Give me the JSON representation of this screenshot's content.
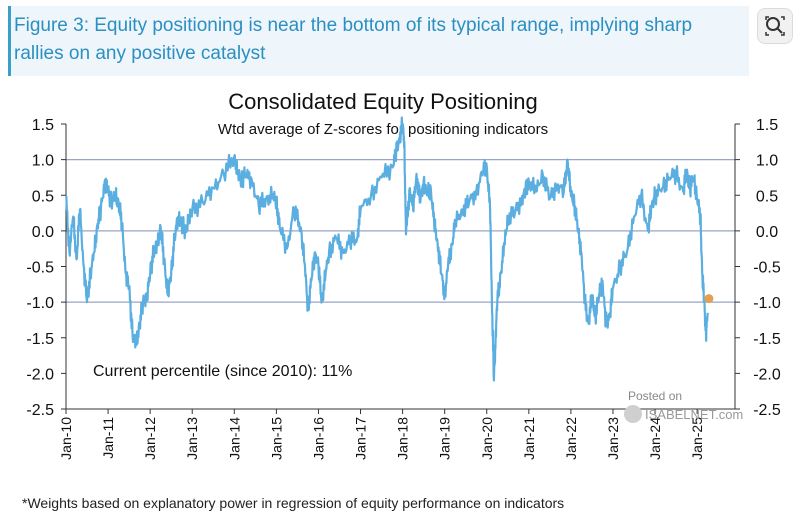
{
  "figure": {
    "caption": "Figure 3: Equity positioning is near the bottom of its typical range, implying sharp rallies on any positive catalyst",
    "footnote": "*Weights based on explanatory power in regression of equity performance on indicators"
  },
  "watermark": {
    "line1": "Posted on",
    "line2": "ISABELNET.com"
  },
  "icons": {
    "zoom": "zoom-lens-icon"
  },
  "chart_data": {
    "type": "line",
    "title": "Consolidated Equity Positioning",
    "subtitle": "Wtd average of Z-scores for positioning indicators",
    "annotation": "Current percentile (since 2010): 11%",
    "ylim": [
      -2.5,
      1.5
    ],
    "yticks": [
      "1.5",
      "1.0",
      "0.5",
      "0.0",
      "-0.5",
      "-1.0",
      "-1.5",
      "-2.0",
      "-2.5"
    ],
    "reference_lines": [
      1.0,
      -1.0,
      0.0
    ],
    "x_start": 2010.0,
    "x_end": 2025.4,
    "xticks": [
      "Jan-10",
      "Jan-11",
      "Jan-12",
      "Jan-13",
      "Jan-14",
      "Jan-15",
      "Jan-16",
      "Jan-17",
      "Jan-18",
      "Jan-19",
      "Jan-20",
      "Jan-21",
      "Jan-22",
      "Jan-23",
      "Jan-24",
      "Jan-25"
    ],
    "series": [
      {
        "name": "Consolidated Equity Positioning",
        "color": "#5aaee0",
        "x": [
          2010.0,
          2010.08,
          2010.17,
          2010.25,
          2010.33,
          2010.42,
          2010.5,
          2010.58,
          2010.67,
          2010.75,
          2010.83,
          2010.92,
          2011.0,
          2011.08,
          2011.17,
          2011.25,
          2011.33,
          2011.42,
          2011.5,
          2011.58,
          2011.67,
          2011.75,
          2011.83,
          2011.92,
          2012.0,
          2012.08,
          2012.17,
          2012.25,
          2012.33,
          2012.42,
          2012.5,
          2012.58,
          2012.67,
          2012.75,
          2012.83,
          2012.92,
          2013.0,
          2013.25,
          2013.5,
          2013.75,
          2014.0,
          2014.08,
          2014.17,
          2014.25,
          2014.42,
          2014.58,
          2014.75,
          2014.92,
          2015.0,
          2015.08,
          2015.25,
          2015.42,
          2015.58,
          2015.67,
          2015.75,
          2015.83,
          2015.92,
          2016.0,
          2016.08,
          2016.17,
          2016.25,
          2016.42,
          2016.58,
          2016.75,
          2016.92,
          2017.0,
          2017.25,
          2017.5,
          2017.75,
          2017.83,
          2017.92,
          2018.0,
          2018.04,
          2018.08,
          2018.17,
          2018.25,
          2018.33,
          2018.42,
          2018.5,
          2018.58,
          2018.67,
          2018.75,
          2018.83,
          2018.92,
          2019.0,
          2019.08,
          2019.17,
          2019.25,
          2019.42,
          2019.58,
          2019.75,
          2019.92,
          2020.0,
          2020.08,
          2020.12,
          2020.17,
          2020.21,
          2020.25,
          2020.33,
          2020.42,
          2020.5,
          2020.67,
          2020.83,
          2020.92,
          2021.0,
          2021.17,
          2021.33,
          2021.5,
          2021.67,
          2021.83,
          2021.92,
          2022.0,
          2022.08,
          2022.17,
          2022.25,
          2022.33,
          2022.42,
          2022.5,
          2022.58,
          2022.67,
          2022.75,
          2022.83,
          2022.92,
          2023.0,
          2023.17,
          2023.33,
          2023.5,
          2023.67,
          2023.83,
          2023.92,
          2024.0,
          2024.17,
          2024.33,
          2024.5,
          2024.67,
          2024.75,
          2024.83,
          2024.92,
          2025.0,
          2025.08,
          2025.12,
          2025.17,
          2025.21,
          2025.25
        ],
        "values": [
          0.5,
          -0.3,
          0.2,
          -0.4,
          0.3,
          -0.5,
          -1.0,
          -0.6,
          -0.3,
          0.1,
          0.3,
          0.7,
          0.55,
          0.4,
          0.5,
          0.4,
          0.1,
          -0.6,
          -0.8,
          -1.45,
          -1.6,
          -1.3,
          -1.0,
          -0.95,
          -0.6,
          -0.3,
          -0.2,
          0.05,
          -0.4,
          -0.9,
          -0.6,
          -0.1,
          0.2,
          0.1,
          0.0,
          0.15,
          0.3,
          0.4,
          0.6,
          0.8,
          1.05,
          0.8,
          0.7,
          0.8,
          0.7,
          0.35,
          0.45,
          0.5,
          0.4,
          0.05,
          -0.25,
          0.3,
          0.05,
          -0.45,
          -1.1,
          -0.7,
          -0.3,
          -0.5,
          -1.0,
          -0.6,
          -0.3,
          -0.1,
          -0.3,
          -0.15,
          -0.1,
          0.3,
          0.5,
          0.75,
          0.9,
          1.05,
          1.3,
          1.5,
          1.25,
          -0.05,
          0.6,
          0.3,
          0.8,
          0.4,
          0.7,
          0.5,
          0.6,
          0.1,
          -0.15,
          -0.6,
          -0.9,
          -0.5,
          -0.2,
          0.1,
          0.3,
          0.4,
          0.55,
          0.85,
          0.9,
          0.3,
          -0.9,
          -2.1,
          -1.5,
          -1.0,
          -0.6,
          -0.2,
          0.2,
          0.25,
          0.45,
          0.55,
          0.7,
          0.55,
          0.8,
          0.45,
          0.65,
          0.55,
          1.0,
          0.5,
          0.4,
          0.0,
          -0.3,
          -1.0,
          -1.3,
          -0.9,
          -1.2,
          -0.9,
          -0.7,
          -1.3,
          -1.2,
          -0.8,
          -0.5,
          -0.3,
          0.2,
          0.5,
          0.0,
          0.35,
          0.5,
          0.6,
          0.75,
          0.8,
          0.55,
          0.85,
          0.6,
          0.75,
          0.45,
          0.2,
          -0.6,
          -1.0,
          -1.45,
          -1.15
        ]
      }
    ],
    "current_point": {
      "x": 2025.28,
      "y": -0.95,
      "color": "#e5a04f"
    }
  }
}
